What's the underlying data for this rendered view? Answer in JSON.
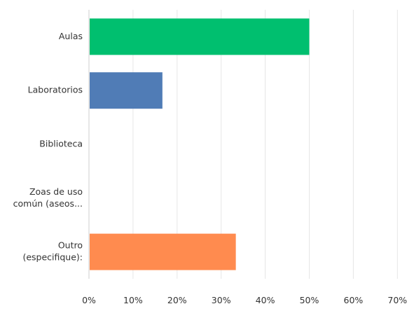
{
  "chart_data": {
    "type": "bar",
    "orientation": "horizontal",
    "categories": [
      [
        "Aulas"
      ],
      [
        "Laboratorios"
      ],
      [
        "Biblioteca"
      ],
      [
        "Zoas de uso",
        "común (aseos..."
      ],
      [
        "Outro",
        "(especifique):"
      ]
    ],
    "values": [
      50,
      16.67,
      0,
      0,
      33.33
    ],
    "colors": [
      "#00bf6f",
      "#507cb6",
      "#6bc8cd",
      "#f9be00",
      "#ff8b4f"
    ],
    "xlim": [
      0,
      70
    ],
    "ticks": [
      "0%",
      "10%",
      "20%",
      "30%",
      "40%",
      "50%",
      "60%",
      "70%"
    ],
    "grid": true,
    "title": "",
    "xlabel": "",
    "ylabel": ""
  }
}
